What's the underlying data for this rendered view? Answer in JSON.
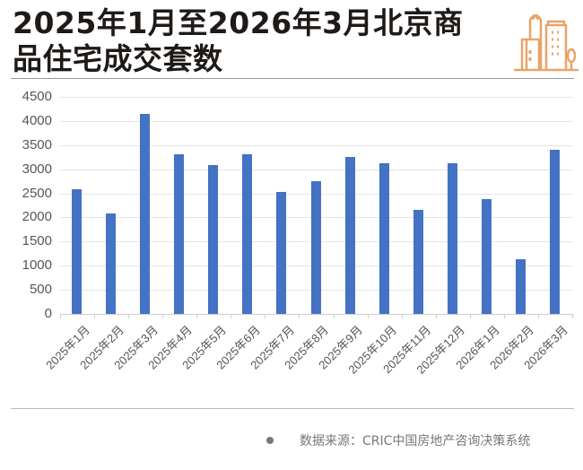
{
  "header": {
    "title_line1": "2025年1月至2026年3月北京商",
    "title_line2": "品住宅成交套数",
    "logo_icon": "city-buildings-icon",
    "logo_color": "#e8a46a"
  },
  "footer": {
    "source": "数据来源：CRIC中国房地产咨询决策系统"
  },
  "colors": {
    "bar": "#4472c4",
    "grid": "#e4e4e4",
    "text": "#555555"
  },
  "chart_data": {
    "type": "bar",
    "title": "2025年1月至2026年3月北京商品住宅成交套数",
    "xlabel": "",
    "ylabel": "",
    "ylim": [
      0,
      4500
    ],
    "yticks": [
      0,
      500,
      1000,
      1500,
      2000,
      2500,
      3000,
      3500,
      4000,
      4500
    ],
    "grid": true,
    "legend": "none",
    "categories": [
      "2025年1月",
      "2025年2月",
      "2025年3月",
      "2025年4月",
      "2025年5月",
      "2025年6月",
      "2025年7月",
      "2025年8月",
      "2025年9月",
      "2025年10月",
      "2025年11月",
      "2025年12月",
      "2026年1月",
      "2026年2月",
      "2026年3月"
    ],
    "values": [
      2580,
      2080,
      4145,
      3310,
      3085,
      3310,
      2530,
      2750,
      3250,
      3120,
      2160,
      3120,
      2380,
      1130,
      3400
    ],
    "source": "数据来源：CRIC中国房地产咨询决策系统"
  }
}
